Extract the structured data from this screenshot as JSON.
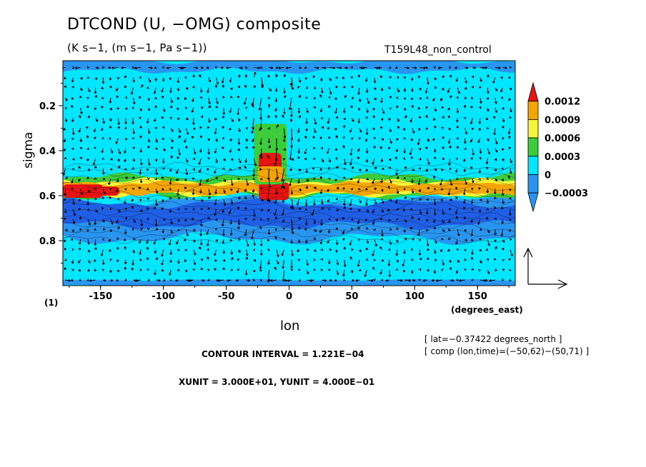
{
  "header": {
    "title": "DTCOND (U, −OMG) composite",
    "subtitle": "(K s−1, (m s−1, Pa s−1))",
    "run_name": "T159L48_non_control"
  },
  "footer": {
    "figure_number": "(1)",
    "lat_info": "[ lat=−0.37422 degrees_north ]",
    "comp_info": "[ comp (lon,time)=(−50,62)−(50,71) ]",
    "contour_interval": "CONTOUR INTERVAL = 1.221E−04",
    "vector_units": "XUNIT = 3.000E+01, YUNIT = 4.000E−01"
  },
  "chart_data": {
    "type": "heatmap",
    "variable": "DTCOND",
    "xlabel": "lon",
    "x_unit_label": "(degrees_east)",
    "ylabel": "sigma",
    "xlim": [
      -180,
      180
    ],
    "ylim": [
      1.0,
      0.0
    ],
    "x_ticks": [
      -150,
      -100,
      -50,
      0,
      50,
      100,
      150
    ],
    "y_ticks": [
      0.2,
      0.4,
      0.6,
      0.8
    ],
    "colorbar": {
      "levels": [
        "0.0012",
        "0.0009",
        "0.0006",
        "0.0003",
        "0",
        "−0.0003"
      ],
      "colors": [
        "#e81414",
        "#f5a500",
        "#f5f53c",
        "#3ccc3c",
        "#00e6ff",
        "#2896f0",
        "#1e5fe6"
      ]
    },
    "vector_overlay": {
      "x_component": "U",
      "y_component": "−OMG",
      "reference_x": 30.0,
      "reference_y": 0.4
    },
    "features": [
      {
        "name": "upper-level heating band",
        "sigma_range": [
          0.5,
          0.62
        ],
        "value": "0.0003–0.0012"
      },
      {
        "name": "lower-level cooling band",
        "sigma_range": [
          0.63,
          0.78
        ],
        "value": "−0.0003 and below"
      },
      {
        "name": "composite center heating maximum",
        "lon_range": [
          -25,
          0
        ],
        "sigma_range": [
          0.3,
          0.65
        ],
        "value": "> 0.0012"
      }
    ]
  }
}
